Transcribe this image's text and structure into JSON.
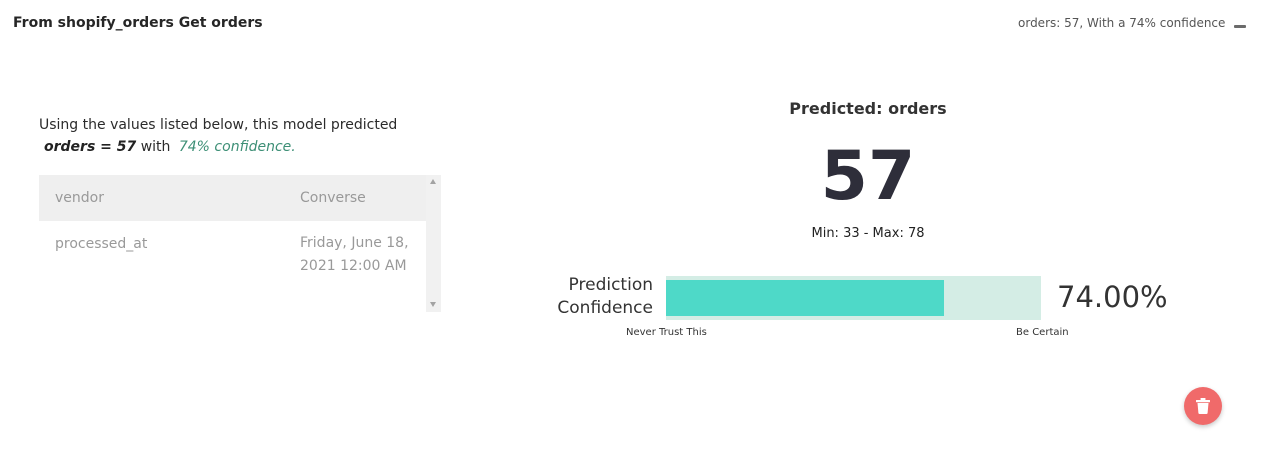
{
  "header": {
    "title": "From shopify_orders Get orders",
    "summary": "orders: 57, With a 74% confidence"
  },
  "explanation": {
    "intro": "Using the values listed below, this model predicted",
    "result": "orders = 57",
    "with_text": "with",
    "confidence_text": "74% confidence."
  },
  "inputs_table": {
    "rows": [
      {
        "key": "vendor",
        "value": "Converse"
      },
      {
        "key": "processed_at",
        "value": "Friday, June 18, 2021 12:00 AM"
      }
    ]
  },
  "prediction": {
    "title": "Predicted: orders",
    "value": "57",
    "range": "Min: 33 - Max: 78"
  },
  "confidence": {
    "label": "Prediction Confidence",
    "value_percent": 74,
    "display": "74.00%",
    "scale_min_label": "Never Trust This",
    "scale_max_label": "Be Certain",
    "fill_color": "#4ed9c8",
    "track_color": "#d4ede5"
  },
  "icons": {
    "collapse": "minus-icon",
    "delete": "trash-icon"
  },
  "colors": {
    "confidence_text": "#3d8f76",
    "delete_button": "#f06a6a"
  }
}
